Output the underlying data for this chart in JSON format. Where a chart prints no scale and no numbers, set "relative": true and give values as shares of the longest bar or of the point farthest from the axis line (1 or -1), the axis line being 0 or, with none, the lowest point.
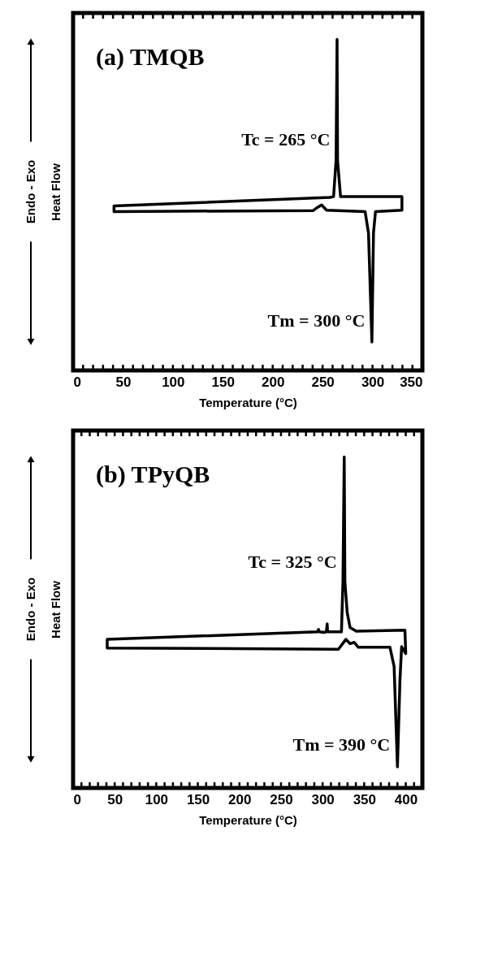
{
  "chart_data": [
    {
      "type": "line",
      "title": "(a) TMQB",
      "xlabel": "Temperature (°C)",
      "ylabel": "Heat Flow",
      "relative": true,
      "tick_labels": "x",
      "grid": false,
      "legend": false,
      "line_style": "solid",
      "marker": "none",
      "xlim": [
        0,
        350
      ],
      "xticks": [
        0,
        {
          "value": 10,
          "label": null
        },
        {
          "value": 20,
          "label": null
        },
        {
          "value": 30,
          "label": null
        },
        {
          "value": 40,
          "label": null
        },
        50,
        {
          "value": 60,
          "label": null
        },
        {
          "value": 70,
          "label": null
        },
        {
          "value": 80,
          "label": null
        },
        {
          "value": 90,
          "label": null
        },
        100,
        {
          "value": 110,
          "label": null
        },
        {
          "value": 120,
          "label": null
        },
        {
          "value": 130,
          "label": null
        },
        {
          "value": 140,
          "label": null
        },
        150,
        {
          "value": 160,
          "label": null
        },
        {
          "value": 170,
          "label": null
        },
        {
          "value": 180,
          "label": null
        },
        {
          "value": 190,
          "label": null
        },
        200,
        {
          "value": 210,
          "label": null
        },
        {
          "value": 220,
          "label": null
        },
        {
          "value": 230,
          "label": null
        },
        {
          "value": 240,
          "label": null
        },
        250,
        {
          "value": 260,
          "label": null
        },
        {
          "value": 270,
          "label": null
        },
        {
          "value": 280,
          "label": null
        },
        {
          "value": 290,
          "label": null
        },
        300,
        {
          "value": 310,
          "label": null
        },
        {
          "value": 320,
          "label": null
        },
        {
          "value": 330,
          "label": null
        },
        {
          "value": 340,
          "label": null
        },
        350
      ],
      "series": [
        {
          "color": "#000000",
          "x": [
            42,
            240.6,
            245,
            249,
            254,
            292.6,
            296,
            299.4,
            301,
            303,
            329.5,
            329.5,
            268,
            265,
            264.5,
            263.5,
            261,
            257,
            41,
            41
          ],
          "values": [
            0.48,
            0.483,
            0.493,
            0.5,
            0.484,
            0.48,
            0.415,
            0.086,
            0.415,
            0.48,
            0.484,
            0.525,
            0.525,
            0.634,
            1,
            0.634,
            0.525,
            0.523,
            0.497,
            0.48
          ]
        }
      ],
      "annotations": [
        {
          "text": "Tc = 265 °C",
          "x": 264,
          "y": 0.698
        },
        {
          "text": "Tm = 300 °C",
          "x": 299,
          "y": 0.15
        },
        "Endo - Exo"
      ]
    },
    {
      "type": "line",
      "title": "(b) TPyQB",
      "xlabel": "Temperature (°C)",
      "ylabel": "Heat Flow",
      "relative": true,
      "tick_labels": "x",
      "grid": false,
      "legend": false,
      "line_style": "solid",
      "marker": "none",
      "xlim": [
        0,
        420
      ],
      "xticks": [
        0,
        {
          "value": 10,
          "label": null
        },
        {
          "value": 20,
          "label": null
        },
        {
          "value": 30,
          "label": null
        },
        {
          "value": 40,
          "label": null
        },
        50,
        {
          "value": 60,
          "label": null
        },
        {
          "value": 70,
          "label": null
        },
        {
          "value": 80,
          "label": null
        },
        {
          "value": 90,
          "label": null
        },
        100,
        {
          "value": 110,
          "label": null
        },
        {
          "value": 120,
          "label": null
        },
        {
          "value": 130,
          "label": null
        },
        {
          "value": 140,
          "label": null
        },
        150,
        {
          "value": 160,
          "label": null
        },
        {
          "value": 170,
          "label": null
        },
        {
          "value": 180,
          "label": null
        },
        {
          "value": 190,
          "label": null
        },
        200,
        {
          "value": 210,
          "label": null
        },
        {
          "value": 220,
          "label": null
        },
        {
          "value": 230,
          "label": null
        },
        {
          "value": 240,
          "label": null
        },
        250,
        {
          "value": 260,
          "label": null
        },
        {
          "value": 270,
          "label": null
        },
        {
          "value": 280,
          "label": null
        },
        {
          "value": 290,
          "label": null
        },
        300,
        {
          "value": 310,
          "label": null
        },
        {
          "value": 320,
          "label": null
        },
        {
          "value": 330,
          "label": null
        },
        {
          "value": 340,
          "label": null
        },
        350,
        {
          "value": 360,
          "label": null
        },
        {
          "value": 370,
          "label": null
        },
        {
          "value": 380,
          "label": null
        },
        {
          "value": 390,
          "label": null
        },
        400,
        {
          "value": 410,
          "label": null
        },
        {
          "value": 420,
          "label": null
        }
      ],
      "series": [
        {
          "color": "#000000",
          "x": [
            42,
            319,
            328,
            333,
            338,
            343,
            381,
            386,
            390,
            393,
            395,
            400,
            399,
            340.5,
            333,
            329.6,
            326.8,
            326,
            324.5,
            322.7,
            306,
            305.5,
            304.5,
            302,
            296,
            295,
            294,
            41,
            41
          ],
          "values": [
            0.423,
            0.419,
            0.449,
            0.436,
            0.44,
            0.425,
            0.425,
            0.367,
            0.064,
            0.325,
            0.427,
            0.406,
            0.477,
            0.474,
            0.485,
            0.53,
            0.624,
            1,
            0.626,
            0.472,
            0.472,
            0.496,
            0.472,
            0.47,
            0.472,
            0.479,
            0.472,
            0.449,
            0.423
          ]
        }
      ],
      "annotations": [
        {
          "text": "Tc = 325 °C",
          "x": 325,
          "y": 0.682
        },
        {
          "text": "Tm = 390 °C",
          "x": 389,
          "y": 0.13
        },
        "Endo - Exo"
      ]
    }
  ]
}
